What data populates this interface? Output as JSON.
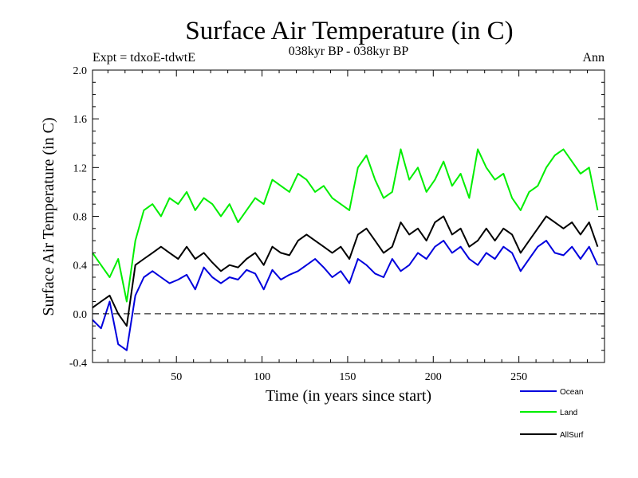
{
  "chart_data": {
    "type": "line",
    "title": "Surface Air Temperature (in C)",
    "subtitle": "038kyr BP - 038kyr BP",
    "experiment_label": "Expt = tdxoE-tdwtE",
    "season_label": "Ann",
    "xlabel": "Time (in years since start)",
    "ylabel": "Surface Air Temperature (in C)",
    "xlim": [
      1,
      300
    ],
    "ylim": [
      -0.4,
      2.0
    ],
    "xticks": [
      50,
      100,
      150,
      200,
      250
    ],
    "yticks": [
      -0.4,
      0.0,
      0.4,
      0.8,
      1.2,
      1.6,
      2.0
    ],
    "xtick_labels": [
      "50",
      "100",
      "150",
      "200",
      "250"
    ],
    "ytick_labels": [
      "-0.4",
      "0.0",
      "0.4",
      "0.8",
      "1.2",
      "1.6",
      "2.0"
    ],
    "zero_line": "dashed",
    "grid": false,
    "legend_position": "bottom-right",
    "series": [
      {
        "name": "Ocean",
        "color": "#0000dd",
        "x_start": 1,
        "x_step": 5,
        "values": [
          -0.05,
          -0.12,
          0.1,
          -0.25,
          -0.3,
          0.15,
          0.3,
          0.35,
          0.3,
          0.25,
          0.28,
          0.32,
          0.2,
          0.38,
          0.3,
          0.25,
          0.3,
          0.28,
          0.36,
          0.33,
          0.2,
          0.36,
          0.28,
          0.32,
          0.35,
          0.4,
          0.45,
          0.38,
          0.3,
          0.35,
          0.25,
          0.45,
          0.4,
          0.33,
          0.3,
          0.45,
          0.35,
          0.4,
          0.5,
          0.45,
          0.55,
          0.6,
          0.5,
          0.55,
          0.45,
          0.4,
          0.5,
          0.45,
          0.55,
          0.5,
          0.35,
          0.45,
          0.55,
          0.6,
          0.5,
          0.48,
          0.55,
          0.45,
          0.55,
          0.4
        ]
      },
      {
        "name": "Land",
        "color": "#00ee00",
        "x_start": 1,
        "x_step": 5,
        "values": [
          0.5,
          0.4,
          0.3,
          0.45,
          0.1,
          0.6,
          0.85,
          0.9,
          0.8,
          0.95,
          0.9,
          1.0,
          0.85,
          0.95,
          0.9,
          0.8,
          0.9,
          0.75,
          0.85,
          0.95,
          0.9,
          1.1,
          1.05,
          1.0,
          1.15,
          1.1,
          1.0,
          1.05,
          0.95,
          0.9,
          0.85,
          1.2,
          1.3,
          1.1,
          0.95,
          1.0,
          1.35,
          1.1,
          1.2,
          1.0,
          1.1,
          1.25,
          1.05,
          1.15,
          0.95,
          1.35,
          1.2,
          1.1,
          1.15,
          0.95,
          0.85,
          1.0,
          1.05,
          1.2,
          1.3,
          1.35,
          1.25,
          1.15,
          1.2,
          0.85
        ]
      },
      {
        "name": "AllSurf",
        "color": "#000000",
        "x_start": 1,
        "x_step": 5,
        "values": [
          0.05,
          0.1,
          0.15,
          0.0,
          -0.1,
          0.4,
          0.45,
          0.5,
          0.55,
          0.5,
          0.45,
          0.55,
          0.45,
          0.5,
          0.42,
          0.35,
          0.4,
          0.38,
          0.45,
          0.5,
          0.4,
          0.55,
          0.5,
          0.48,
          0.6,
          0.65,
          0.6,
          0.55,
          0.5,
          0.55,
          0.45,
          0.65,
          0.7,
          0.6,
          0.5,
          0.55,
          0.75,
          0.65,
          0.7,
          0.6,
          0.75,
          0.8,
          0.65,
          0.7,
          0.55,
          0.6,
          0.7,
          0.6,
          0.7,
          0.65,
          0.5,
          0.6,
          0.7,
          0.8,
          0.75,
          0.7,
          0.75,
          0.65,
          0.75,
          0.55
        ]
      }
    ]
  }
}
